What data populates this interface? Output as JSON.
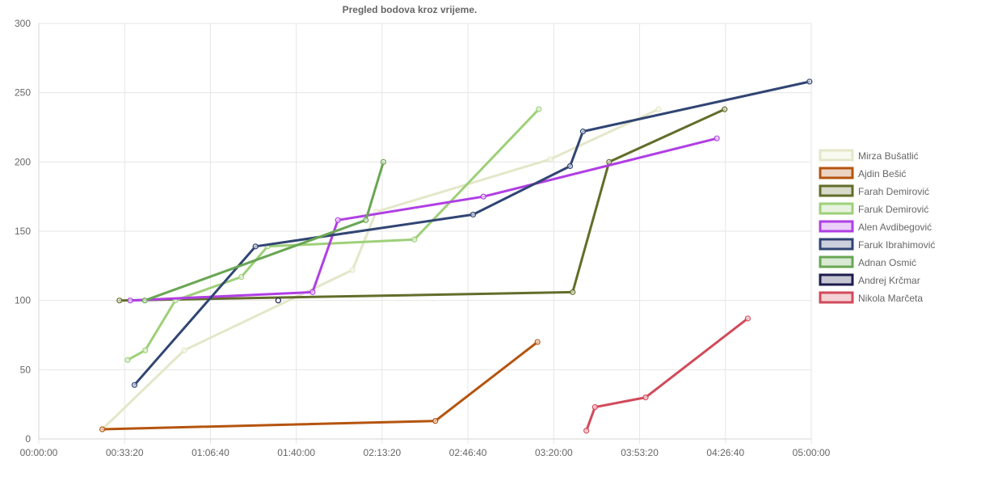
{
  "chart_data": {
    "type": "line",
    "title": "Pregled bodova kroz vrijeme.",
    "x_unit": "seconds",
    "xlim": [
      0,
      18000
    ],
    "ylim": [
      0,
      300
    ],
    "x_ticks": [
      0,
      2000,
      4000,
      6000,
      8000,
      10000,
      12000,
      14000,
      16000,
      18000
    ],
    "x_tick_labels": [
      "00:00:00",
      "00:33:20",
      "01:06:40",
      "01:40:00",
      "02:13:20",
      "02:46:40",
      "03:20:00",
      "03:53:20",
      "04:26:40",
      "05:00:00"
    ],
    "y_ticks": [
      0,
      50,
      100,
      150,
      200,
      250,
      300
    ],
    "y_tick_labels": [
      "0",
      "50",
      "100",
      "150",
      "200",
      "250",
      "300"
    ],
    "grid": true,
    "legend_position": "right",
    "series": [
      {
        "name": "Mirza Bušatlić",
        "color": "#e4e7c8",
        "points": [
          [
            1480,
            7
          ],
          [
            3390,
            64
          ],
          [
            7310,
            122
          ],
          [
            7860,
            164
          ],
          [
            11920,
            202
          ],
          [
            14440,
            238
          ]
        ]
      },
      {
        "name": "Ajdin Bešić",
        "color": "#b5540f",
        "points": [
          [
            1480,
            7
          ],
          [
            9240,
            13
          ],
          [
            11620,
            70
          ]
        ]
      },
      {
        "name": "Farah Demirović",
        "color": "#626d2a",
        "points": [
          [
            1880,
            100
          ],
          [
            12440,
            106
          ],
          [
            13290,
            200
          ],
          [
            15980,
            238
          ]
        ]
      },
      {
        "name": "Faruk Demirović",
        "color": "#9ed07a",
        "points": [
          [
            2070,
            57
          ],
          [
            2480,
            64
          ],
          [
            3180,
            100
          ],
          [
            4720,
            117
          ],
          [
            5330,
            139
          ],
          [
            8750,
            144
          ],
          [
            11650,
            238
          ]
        ]
      },
      {
        "name": "Alen Avdibegović",
        "color": "#b03fe4",
        "points": [
          [
            2130,
            100
          ],
          [
            6380,
            106
          ],
          [
            6970,
            158
          ],
          [
            10360,
            175
          ],
          [
            15800,
            217
          ]
        ]
      },
      {
        "name": "Faruk Ibrahimović",
        "color": "#314573",
        "points": [
          [
            2230,
            39
          ],
          [
            5050,
            139
          ],
          [
            10120,
            162
          ],
          [
            12380,
            197
          ],
          [
            12680,
            222
          ],
          [
            17960,
            258
          ]
        ]
      },
      {
        "name": "Adnan Osmić",
        "color": "#69a653",
        "points": [
          [
            2470,
            100
          ],
          [
            7620,
            158
          ],
          [
            8030,
            200
          ]
        ]
      },
      {
        "name": "Andrej Krčmar",
        "color": "#1c1c4e",
        "points": [
          [
            5580,
            100
          ]
        ]
      },
      {
        "name": "Nikola Marčeta",
        "color": "#d24a5a",
        "points": [
          [
            12760,
            6
          ],
          [
            12960,
            23
          ],
          [
            14140,
            30
          ],
          [
            16520,
            87
          ]
        ]
      }
    ]
  }
}
